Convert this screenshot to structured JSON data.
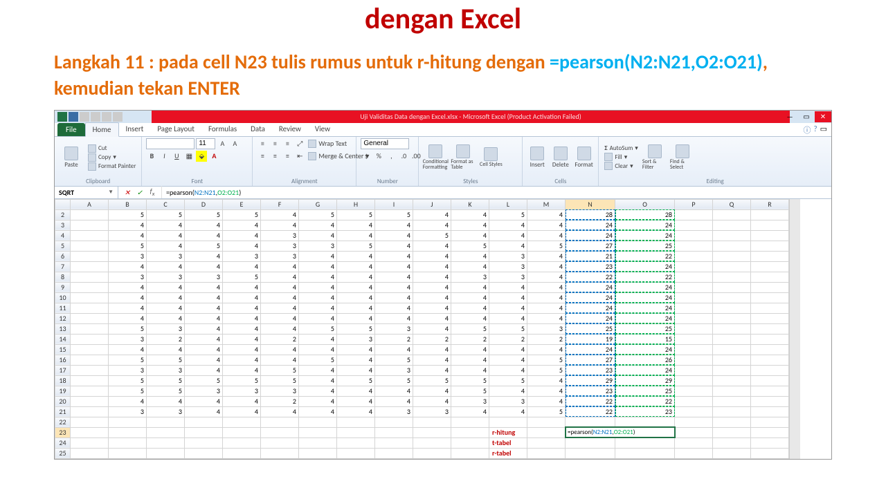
{
  "slide": {
    "title": "dengan Excel",
    "instruction_prefix": "Langkah 11 : pada cell N23 tulis rumus untuk r-hitung dengan ",
    "instruction_formula": "=pearson(N2:N21,O2:O21)",
    "instruction_suffix": ", kemudian tekan ENTER"
  },
  "window": {
    "title": "Uji Validitas Data dengan Excel.xlsx - Microsoft Excel (Product Activation Failed)"
  },
  "tabs": {
    "file": "File",
    "items": [
      "Home",
      "Insert",
      "Page Layout",
      "Formulas",
      "Data",
      "Review",
      "View"
    ],
    "active": "Home"
  },
  "ribbon": {
    "clipboard": {
      "label": "Clipboard",
      "paste": "Paste",
      "cut": "Cut",
      "copy": "Copy",
      "fmt": "Format Painter"
    },
    "font": {
      "label": "Font",
      "name": "",
      "size": "11"
    },
    "alignment": {
      "label": "Alignment",
      "wrap": "Wrap Text",
      "merge": "Merge & Center"
    },
    "number": {
      "label": "Number",
      "format": "General"
    },
    "styles": {
      "label": "Styles",
      "cond": "Conditional Formatting",
      "table": "Format as Table",
      "cell": "Cell Styles"
    },
    "cells": {
      "label": "Cells",
      "insert": "Insert",
      "delete": "Delete",
      "format": "Format"
    },
    "editing": {
      "label": "Editing",
      "autosum": "AutoSum",
      "fill": "Fill",
      "clear": "Clear",
      "sort": "Sort & Filter",
      "find": "Find & Select"
    }
  },
  "formula_bar": {
    "name_box": "SQRT",
    "formula_raw": "=pearson(N2:N21,O2:O21)"
  },
  "columns": [
    "A",
    "B",
    "C",
    "D",
    "E",
    "F",
    "G",
    "H",
    "I",
    "J",
    "K",
    "L",
    "M",
    "N",
    "O",
    "P",
    "Q",
    "R"
  ],
  "row_start": 2,
  "row_end": 25,
  "data_cols": [
    "B",
    "C",
    "D",
    "E",
    "F",
    "G",
    "H",
    "I",
    "J",
    "K",
    "L",
    "M",
    "N",
    "O"
  ],
  "rows": [
    {
      "r": 2,
      "B": 5,
      "C": 5,
      "D": 5,
      "E": 5,
      "F": 4,
      "G": 5,
      "H": 5,
      "I": 5,
      "J": 4,
      "K": 4,
      "L": 5,
      "M": 4,
      "N": 28,
      "O": 28
    },
    {
      "r": 3,
      "B": 4,
      "C": 4,
      "D": 4,
      "E": 4,
      "F": 4,
      "G": 4,
      "H": 4,
      "I": 4,
      "J": 4,
      "K": 4,
      "L": 4,
      "M": 4,
      "N": 24,
      "O": 24
    },
    {
      "r": 4,
      "B": 4,
      "C": 4,
      "D": 4,
      "E": 4,
      "F": 3,
      "G": 4,
      "H": 4,
      "I": 4,
      "J": 5,
      "K": 4,
      "L": 4,
      "M": 4,
      "N": 24,
      "O": 24
    },
    {
      "r": 5,
      "B": 5,
      "C": 4,
      "D": 5,
      "E": 4,
      "F": 3,
      "G": 3,
      "H": 5,
      "I": 4,
      "J": 4,
      "K": 5,
      "L": 4,
      "M": 5,
      "N": 27,
      "O": 25
    },
    {
      "r": 6,
      "B": 3,
      "C": 3,
      "D": 4,
      "E": 3,
      "F": 3,
      "G": 4,
      "H": 4,
      "I": 4,
      "J": 4,
      "K": 4,
      "L": 3,
      "M": 4,
      "N": 21,
      "O": 22
    },
    {
      "r": 7,
      "B": 4,
      "C": 4,
      "D": 4,
      "E": 4,
      "F": 4,
      "G": 4,
      "H": 4,
      "I": 4,
      "J": 4,
      "K": 4,
      "L": 3,
      "M": 4,
      "N": 23,
      "O": 24
    },
    {
      "r": 8,
      "B": 3,
      "C": 3,
      "D": 3,
      "E": 5,
      "F": 4,
      "G": 4,
      "H": 4,
      "I": 4,
      "J": 4,
      "K": 3,
      "L": 3,
      "M": 4,
      "N": 22,
      "O": 22
    },
    {
      "r": 9,
      "B": 4,
      "C": 4,
      "D": 4,
      "E": 4,
      "F": 4,
      "G": 4,
      "H": 4,
      "I": 4,
      "J": 4,
      "K": 4,
      "L": 4,
      "M": 4,
      "N": 24,
      "O": 24
    },
    {
      "r": 10,
      "B": 4,
      "C": 4,
      "D": 4,
      "E": 4,
      "F": 4,
      "G": 4,
      "H": 4,
      "I": 4,
      "J": 4,
      "K": 4,
      "L": 4,
      "M": 4,
      "N": 24,
      "O": 24
    },
    {
      "r": 11,
      "B": 4,
      "C": 4,
      "D": 4,
      "E": 4,
      "F": 4,
      "G": 4,
      "H": 4,
      "I": 4,
      "J": 4,
      "K": 4,
      "L": 4,
      "M": 4,
      "N": 24,
      "O": 24
    },
    {
      "r": 12,
      "B": 4,
      "C": 4,
      "D": 4,
      "E": 4,
      "F": 4,
      "G": 4,
      "H": 4,
      "I": 4,
      "J": 4,
      "K": 4,
      "L": 4,
      "M": 4,
      "N": 24,
      "O": 24
    },
    {
      "r": 13,
      "B": 5,
      "C": 3,
      "D": 4,
      "E": 4,
      "F": 4,
      "G": 5,
      "H": 5,
      "I": 3,
      "J": 4,
      "K": 5,
      "L": 5,
      "M": 3,
      "N": 25,
      "O": 25
    },
    {
      "r": 14,
      "B": 3,
      "C": 2,
      "D": 4,
      "E": 4,
      "F": 2,
      "G": 4,
      "H": 3,
      "I": 2,
      "J": 2,
      "K": 2,
      "L": 2,
      "M": 2,
      "N": 19,
      "O": 15
    },
    {
      "r": 15,
      "B": 4,
      "C": 4,
      "D": 4,
      "E": 4,
      "F": 4,
      "G": 4,
      "H": 4,
      "I": 4,
      "J": 4,
      "K": 4,
      "L": 4,
      "M": 4,
      "N": 24,
      "O": 24
    },
    {
      "r": 16,
      "B": 5,
      "C": 5,
      "D": 4,
      "E": 4,
      "F": 4,
      "G": 5,
      "H": 4,
      "I": 5,
      "J": 4,
      "K": 4,
      "L": 4,
      "M": 5,
      "N": 27,
      "O": 26
    },
    {
      "r": 17,
      "B": 3,
      "C": 3,
      "D": 4,
      "E": 4,
      "F": 5,
      "G": 4,
      "H": 4,
      "I": 3,
      "J": 4,
      "K": 4,
      "L": 4,
      "M": 5,
      "N": 23,
      "O": 24
    },
    {
      "r": 18,
      "B": 5,
      "C": 5,
      "D": 5,
      "E": 5,
      "F": 5,
      "G": 4,
      "H": 5,
      "I": 5,
      "J": 5,
      "K": 5,
      "L": 5,
      "M": 4,
      "N": 29,
      "O": 29
    },
    {
      "r": 19,
      "B": 5,
      "C": 5,
      "D": 3,
      "E": 3,
      "F": 3,
      "G": 4,
      "H": 4,
      "I": 4,
      "J": 4,
      "K": 5,
      "L": 4,
      "M": 4,
      "N": 23,
      "O": 25
    },
    {
      "r": 20,
      "B": 4,
      "C": 4,
      "D": 4,
      "E": 4,
      "F": 2,
      "G": 4,
      "H": 4,
      "I": 4,
      "J": 4,
      "K": 3,
      "L": 3,
      "M": 4,
      "N": 22,
      "O": 22
    },
    {
      "r": 21,
      "B": 3,
      "C": 3,
      "D": 4,
      "E": 4,
      "F": 4,
      "G": 4,
      "H": 4,
      "I": 3,
      "J": 3,
      "K": 4,
      "L": 4,
      "M": 5,
      "N": 22,
      "O": 23
    }
  ],
  "labels": {
    "23": "r-hitung",
    "24": "t-tabel",
    "25": "r-tabel"
  },
  "active_cell": {
    "col": "N",
    "row": 23,
    "display": "=pearson(N2:N21,O2:O21)"
  },
  "range_highlight": {
    "N": {
      "from": 2,
      "to": 21,
      "color": "#0070c0"
    },
    "O": {
      "from": 2,
      "to": 21,
      "color": "#00b050"
    }
  },
  "colors": {
    "title": "#c00000",
    "instruction": "#e46c0a",
    "formula": "#00b0f0",
    "titlebar_bg": "#e81123",
    "selection": "#217346"
  }
}
